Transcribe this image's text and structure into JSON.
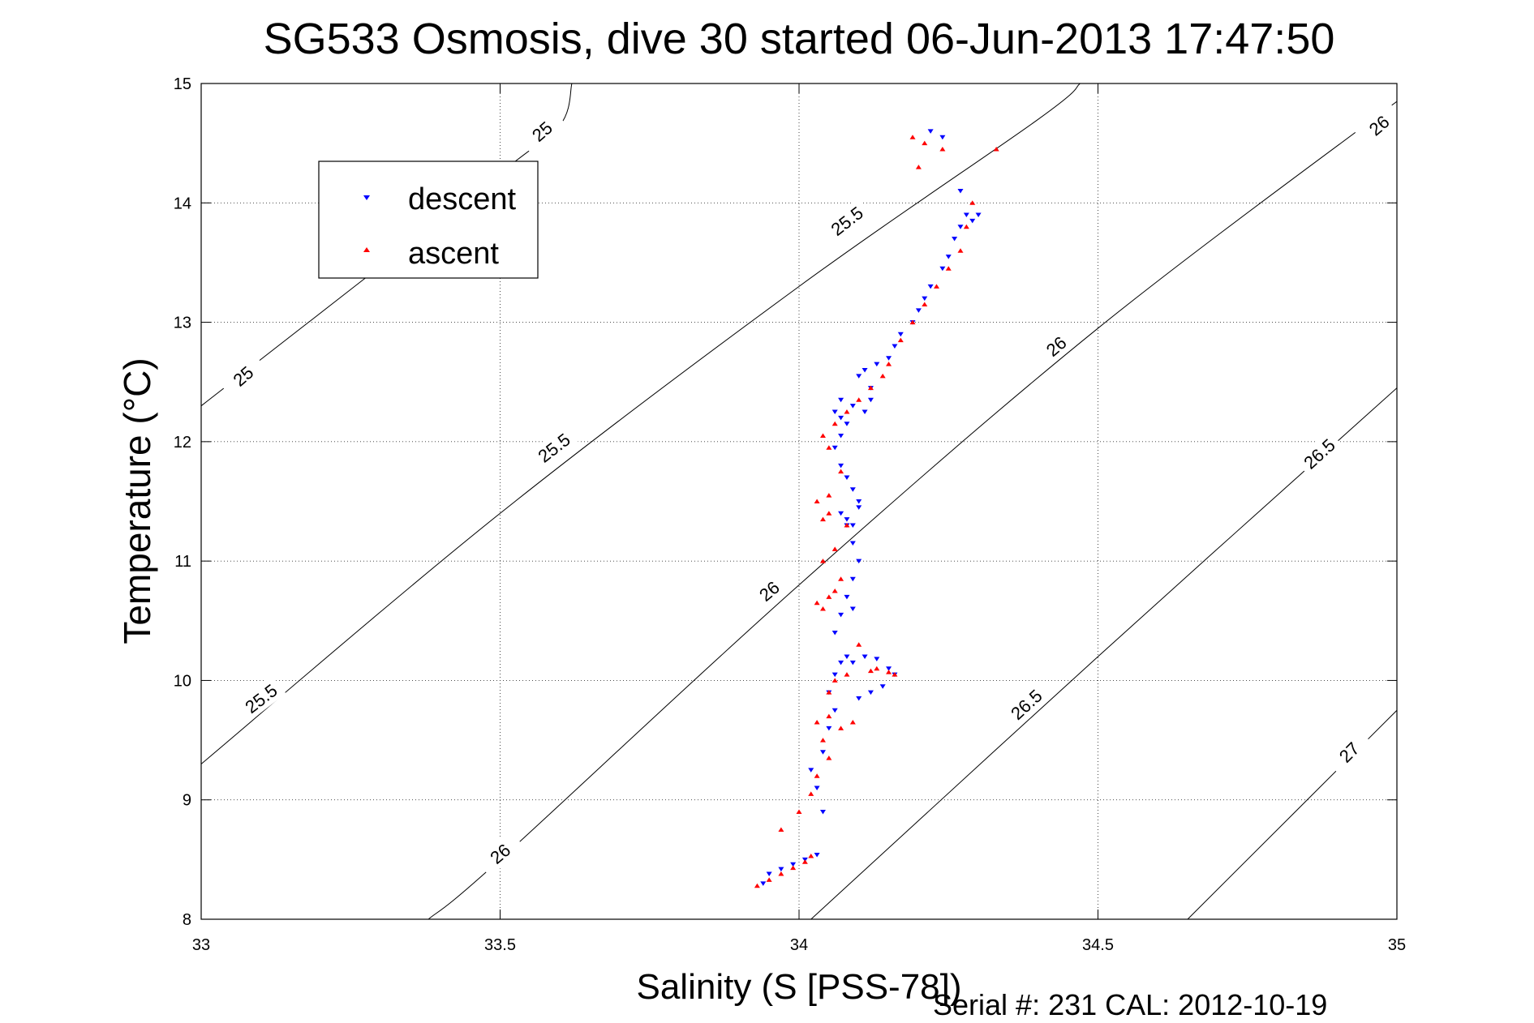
{
  "chart_data": {
    "type": "scatter",
    "title": "SG533 Osmosis, dive 30 started 06-Jun-2013 17:47:50",
    "xlabel": "Salinity (S [PSS-78])",
    "ylabel": "Temperature (°C)",
    "footer": "Serial #: 231  CAL: 2012-10-19",
    "xlim": [
      33,
      35
    ],
    "ylim": [
      8,
      15
    ],
    "xticks": [
      33,
      33.5,
      34,
      34.5,
      35
    ],
    "xtick_labels": [
      "33",
      "33.5",
      "34",
      "34.5",
      "35"
    ],
    "yticks": [
      8,
      9,
      10,
      11,
      12,
      13,
      14,
      15
    ],
    "ytick_labels": [
      "8",
      "9",
      "10",
      "11",
      "12",
      "13",
      "14",
      "15"
    ],
    "grid": true,
    "legend_position": "upper-left",
    "density_contours": [
      {
        "level": "25",
        "points": [
          [
            33.0,
            12.3
          ],
          [
            33.5,
            14.25
          ],
          [
            33.6,
            14.65
          ],
          [
            33.62,
            15.0
          ]
        ],
        "labels": [
          [
            33.07,
            12.55
          ],
          [
            33.57,
            14.6
          ]
        ]
      },
      {
        "level": "25.5",
        "points": [
          [
            33.0,
            9.3
          ],
          [
            33.5,
            11.4
          ],
          [
            34.0,
            13.3
          ],
          [
            34.4,
            14.7
          ],
          [
            34.47,
            15.0
          ]
        ],
        "labels": [
          [
            33.1,
            9.85
          ],
          [
            33.59,
            11.95
          ],
          [
            34.08,
            13.85
          ]
        ]
      },
      {
        "level": "26",
        "points": [
          [
            33.38,
            8.0
          ],
          [
            33.5,
            8.5
          ],
          [
            34.0,
            10.8
          ],
          [
            34.5,
            12.95
          ],
          [
            35.0,
            14.85
          ]
        ],
        "labels": [
          [
            33.5,
            8.55
          ],
          [
            33.95,
            10.75
          ],
          [
            34.43,
            12.8
          ],
          [
            34.97,
            14.65
          ]
        ]
      },
      {
        "level": "26.5",
        "points": [
          [
            34.02,
            8.0
          ],
          [
            34.5,
            10.2
          ],
          [
            35.0,
            12.45
          ]
        ],
        "labels": [
          [
            34.38,
            9.8
          ],
          [
            34.87,
            11.9
          ]
        ]
      },
      {
        "level": "27",
        "points": [
          [
            34.65,
            8.0
          ],
          [
            35.0,
            9.75
          ]
        ],
        "labels": [
          [
            34.92,
            9.4
          ]
        ]
      }
    ],
    "series": [
      {
        "name": "descent",
        "color": "#0000ff",
        "marker": "triangle-down",
        "x": [
          33.94,
          33.95,
          33.97,
          33.99,
          34.01,
          34.03,
          34.04,
          34.03,
          34.02,
          34.04,
          34.05,
          34.06,
          34.05,
          34.06,
          34.07,
          34.08,
          34.06,
          34.07,
          34.09,
          34.11,
          34.13,
          34.15,
          34.16,
          34.14,
          34.12,
          34.1,
          34.09,
          34.08,
          34.09,
          34.1,
          34.09,
          34.08,
          34.07,
          34.08,
          34.09,
          34.1,
          34.1,
          34.09,
          34.08,
          34.07,
          34.06,
          34.07,
          34.08,
          34.07,
          34.06,
          34.07,
          34.09,
          34.11,
          34.12,
          34.12,
          34.1,
          34.11,
          34.13,
          34.15,
          34.16,
          34.17,
          34.19,
          34.2,
          34.21,
          34.22,
          34.24,
          34.25,
          34.26,
          34.27,
          34.28,
          34.29,
          34.3,
          34.27,
          34.24,
          34.22
        ],
        "y": [
          8.3,
          8.38,
          8.42,
          8.46,
          8.5,
          8.54,
          8.9,
          9.1,
          9.25,
          9.4,
          9.6,
          9.75,
          9.9,
          10.05,
          10.15,
          10.2,
          10.4,
          10.55,
          10.15,
          10.2,
          10.18,
          10.1,
          10.05,
          9.95,
          9.9,
          9.85,
          10.6,
          10.7,
          10.85,
          11.0,
          11.15,
          11.3,
          11.4,
          11.35,
          11.3,
          11.45,
          11.5,
          11.6,
          11.7,
          11.8,
          11.95,
          12.05,
          12.15,
          12.2,
          12.25,
          12.35,
          12.3,
          12.25,
          12.35,
          12.45,
          12.55,
          12.6,
          12.65,
          12.7,
          12.8,
          12.9,
          13.0,
          13.1,
          13.2,
          13.3,
          13.45,
          13.55,
          13.7,
          13.8,
          13.9,
          13.85,
          13.9,
          14.1,
          14.55,
          14.6
        ]
      },
      {
        "name": "ascent",
        "color": "#ff0000",
        "marker": "triangle-up",
        "x": [
          33.93,
          33.95,
          33.97,
          33.99,
          34.01,
          34.02,
          33.97,
          34.0,
          34.02,
          34.03,
          34.05,
          34.04,
          34.03,
          34.05,
          34.07,
          34.09,
          34.05,
          34.06,
          34.08,
          34.12,
          34.15,
          34.16,
          34.13,
          34.1,
          34.04,
          34.06,
          34.07,
          34.05,
          34.03,
          34.04,
          34.06,
          34.08,
          34.05,
          34.04,
          34.03,
          34.05,
          34.07,
          34.05,
          34.04,
          34.06,
          34.08,
          34.1,
          34.12,
          34.14,
          34.15,
          34.17,
          34.19,
          34.21,
          34.23,
          34.25,
          34.27,
          34.28,
          34.29,
          34.24,
          34.21,
          34.19,
          34.2,
          34.33
        ],
        "y": [
          8.28,
          8.33,
          8.38,
          8.43,
          8.48,
          8.53,
          8.75,
          8.9,
          9.05,
          9.2,
          9.35,
          9.5,
          9.65,
          9.7,
          9.6,
          9.65,
          9.9,
          10.0,
          10.05,
          10.08,
          10.07,
          10.05,
          10.1,
          10.3,
          10.6,
          10.75,
          10.85,
          10.7,
          10.65,
          11.0,
          11.1,
          11.3,
          11.4,
          11.35,
          11.5,
          11.55,
          11.75,
          11.95,
          12.05,
          12.15,
          12.25,
          12.35,
          12.45,
          12.55,
          12.65,
          12.85,
          13.0,
          13.15,
          13.3,
          13.45,
          13.6,
          13.8,
          14.0,
          14.45,
          14.5,
          14.55,
          14.3,
          14.45
        ]
      }
    ]
  }
}
